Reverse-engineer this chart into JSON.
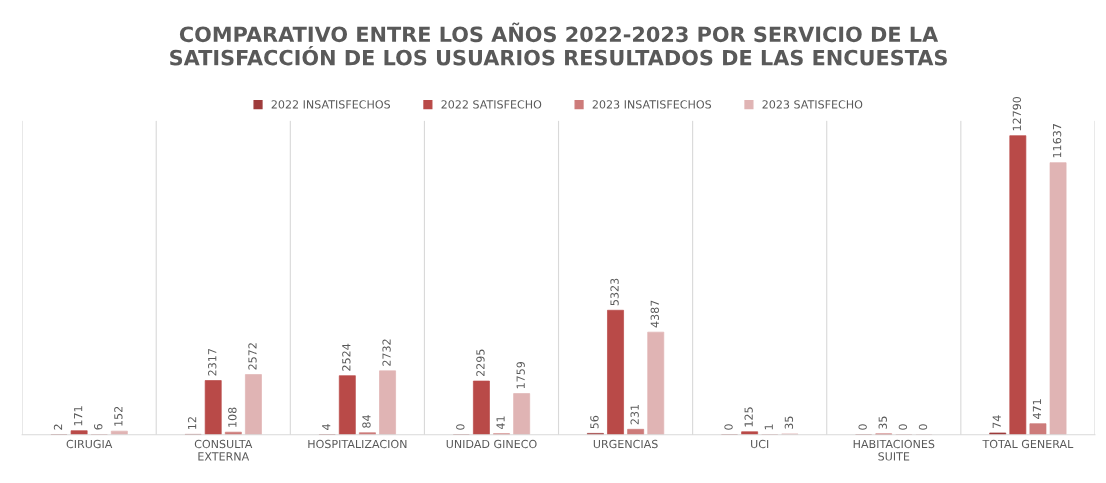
{
  "chart_data": {
    "type": "bar",
    "title": "COMPARATIVO ENTRE LOS AÑOS 2022-2023 POR SERVICIO DE LA\nSATISFACCIÓN DE LOS USUARIOS RESULTADOS DE LAS ENCUESTAS",
    "categories": [
      "CIRUGIA",
      "CONSULTA EXTERNA",
      "HOSPITALIZACION",
      "UNIDAD GINECO",
      "URGENCIAS",
      "UCI",
      "HABITACIONES SUITE",
      "TOTAL GENERAL"
    ],
    "series": [
      {
        "name": "2022 INSATISFECHOS",
        "color": "#9e3b3b",
        "values": [
          2,
          12,
          4,
          0,
          56,
          0,
          0,
          74
        ]
      },
      {
        "name": "2022 SATISFECHO",
        "color": "#b94a48",
        "values": [
          171,
          2317,
          2524,
          2295,
          5323,
          125,
          35,
          12790
        ]
      },
      {
        "name": "2023 INSATISFECHOS",
        "color": "#cd7b7a",
        "values": [
          6,
          108,
          84,
          41,
          231,
          1,
          0,
          471
        ]
      },
      {
        "name": "2023 SATISFECHO",
        "color": "#e0b4b4",
        "values": [
          152,
          2572,
          2732,
          1759,
          4387,
          35,
          0,
          11637
        ]
      }
    ],
    "data_labels": true,
    "grid": "x",
    "legend": "top"
  }
}
